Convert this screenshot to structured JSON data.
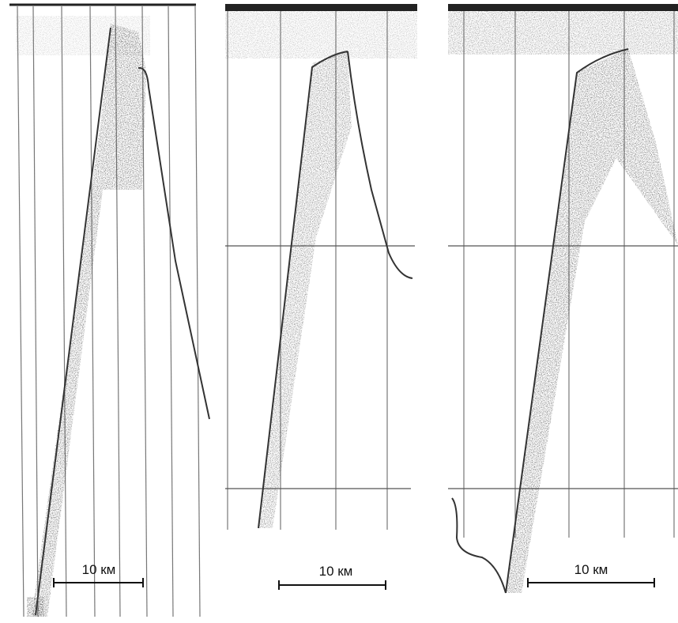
{
  "panels": [
    {
      "scale_label": "10 км"
    },
    {
      "scale_label": "10 км"
    },
    {
      "scale_label": "10 км"
    }
  ]
}
